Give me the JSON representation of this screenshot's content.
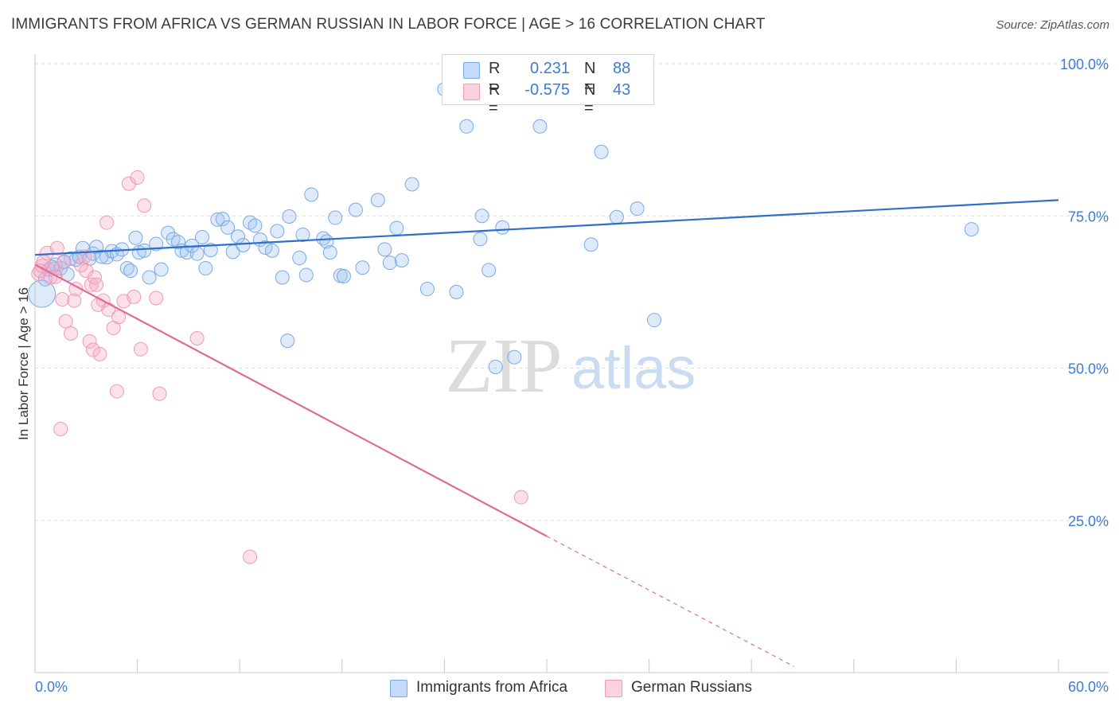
{
  "header": {
    "title": "IMMIGRANTS FROM AFRICA VS GERMAN RUSSIAN IN LABOR FORCE | AGE > 16 CORRELATION CHART",
    "source": "Source: ZipAtlas.com"
  },
  "watermark": {
    "zip": "ZIP",
    "atlas": "atlas"
  },
  "stats": [
    {
      "r_label": "R =",
      "r_value": "0.231",
      "n_label": "N =",
      "n_value": "88",
      "color": "#7aaae6"
    },
    {
      "r_label": "R =",
      "r_value": "-0.575",
      "n_label": "N =",
      "n_value": "43",
      "color": "#f09ab5"
    }
  ],
  "chart_data": {
    "type": "scatter",
    "title": "IMMIGRANTS FROM AFRICA VS GERMAN RUSSIAN IN LABOR FORCE | AGE > 16 CORRELATION CHART",
    "xlabel": "",
    "ylabel": "In Labor Force | Age > 16",
    "xlim": [
      0,
      60
    ],
    "ylim": [
      0,
      100
    ],
    "x_tick_labels": [
      "0.0%",
      "60.0%"
    ],
    "y_ticks": [
      25,
      50,
      75,
      100
    ],
    "y_tick_labels": [
      "25.0%",
      "50.0%",
      "75.0%",
      "100.0%"
    ],
    "grid": "horizontal dashed",
    "legend": "bottom-center",
    "series": [
      {
        "name": "Immigrants from Africa",
        "color": "#7aaae6",
        "line_color": "#2f6fcc",
        "trend": {
          "x": [
            0,
            60
          ],
          "y": [
            68.6,
            77.6
          ]
        },
        "points": [
          [
            0.4,
            62.2
          ],
          [
            0.8,
            66.2
          ],
          [
            1.2,
            67.0
          ],
          [
            1.5,
            66.4
          ],
          [
            1.9,
            65.4
          ],
          [
            2.1,
            68.0
          ],
          [
            2.4,
            67.8
          ],
          [
            2.6,
            68.3
          ],
          [
            2.8,
            69.7
          ],
          [
            3.2,
            68.0
          ],
          [
            3.4,
            68.8
          ],
          [
            3.6,
            69.9
          ],
          [
            4.2,
            68.2
          ],
          [
            4.5,
            69.2
          ],
          [
            4.8,
            68.7
          ],
          [
            5.1,
            69.5
          ],
          [
            5.4,
            66.4
          ],
          [
            5.6,
            66.0
          ],
          [
            5.9,
            71.4
          ],
          [
            6.1,
            69.0
          ],
          [
            6.4,
            69.3
          ],
          [
            6.7,
            64.9
          ],
          [
            7.1,
            70.4
          ],
          [
            7.4,
            66.2
          ],
          [
            7.8,
            72.2
          ],
          [
            8.1,
            71.2
          ],
          [
            8.4,
            70.7
          ],
          [
            8.6,
            69.3
          ],
          [
            8.9,
            69.0
          ],
          [
            9.2,
            70.1
          ],
          [
            9.5,
            68.8
          ],
          [
            9.8,
            71.5
          ],
          [
            10.0,
            66.4
          ],
          [
            10.3,
            69.4
          ],
          [
            10.7,
            74.4
          ],
          [
            11.0,
            74.5
          ],
          [
            11.3,
            73.1
          ],
          [
            11.6,
            69.1
          ],
          [
            11.9,
            71.6
          ],
          [
            12.2,
            70.2
          ],
          [
            12.6,
            73.9
          ],
          [
            12.9,
            73.4
          ],
          [
            13.2,
            71.1
          ],
          [
            13.5,
            69.8
          ],
          [
            13.9,
            69.3
          ],
          [
            14.2,
            72.5
          ],
          [
            14.5,
            64.9
          ],
          [
            14.8,
            54.5
          ],
          [
            14.9,
            74.9
          ],
          [
            15.5,
            68.1
          ],
          [
            15.7,
            71.9
          ],
          [
            15.9,
            65.3
          ],
          [
            16.2,
            78.5
          ],
          [
            16.9,
            71.3
          ],
          [
            17.1,
            70.8
          ],
          [
            17.3,
            69.0
          ],
          [
            17.6,
            74.7
          ],
          [
            17.9,
            65.2
          ],
          [
            18.1,
            65.1
          ],
          [
            18.8,
            76.0
          ],
          [
            19.2,
            66.5
          ],
          [
            20.1,
            77.6
          ],
          [
            20.5,
            69.5
          ],
          [
            20.8,
            67.3
          ],
          [
            21.2,
            73.0
          ],
          [
            21.5,
            67.7
          ],
          [
            22.1,
            80.2
          ],
          [
            23.0,
            63.0
          ],
          [
            24.0,
            95.8
          ],
          [
            24.7,
            62.5
          ],
          [
            25.3,
            89.7
          ],
          [
            26.1,
            71.2
          ],
          [
            26.2,
            75.0
          ],
          [
            26.6,
            66.1
          ],
          [
            27.0,
            50.2
          ],
          [
            27.4,
            73.1
          ],
          [
            28.1,
            51.8
          ],
          [
            29.6,
            89.7
          ],
          [
            32.6,
            70.3
          ],
          [
            33.2,
            85.5
          ],
          [
            34.1,
            74.8
          ],
          [
            35.3,
            76.2
          ],
          [
            36.3,
            57.9
          ],
          [
            54.9,
            72.8
          ],
          [
            0.6,
            64.6
          ],
          [
            1.0,
            66.6
          ],
          [
            1.7,
            67.5
          ],
          [
            3.9,
            68.3
          ]
        ]
      },
      {
        "name": "German Russians",
        "color": "#f09ab5",
        "line_color": "#e06a96",
        "trend": {
          "x": [
            0,
            30
          ],
          "y": [
            67.0,
            22.4
          ]
        },
        "trend_dashed": {
          "x": [
            30,
            44.5
          ],
          "y": [
            22.4,
            1.0
          ]
        },
        "points": [
          [
            0.2,
            65.5
          ],
          [
            0.4,
            66.8
          ],
          [
            0.7,
            68.9
          ],
          [
            0.9,
            64.9
          ],
          [
            1.1,
            66.3
          ],
          [
            1.3,
            69.7
          ],
          [
            1.6,
            61.3
          ],
          [
            1.7,
            67.4
          ],
          [
            1.8,
            57.7
          ],
          [
            2.1,
            55.7
          ],
          [
            2.3,
            61.1
          ],
          [
            2.7,
            66.9
          ],
          [
            2.9,
            68.3
          ],
          [
            3.0,
            66.0
          ],
          [
            3.2,
            54.4
          ],
          [
            3.3,
            63.7
          ],
          [
            3.4,
            53.0
          ],
          [
            3.5,
            64.9
          ],
          [
            3.6,
            63.7
          ],
          [
            3.8,
            52.3
          ],
          [
            4.0,
            61.1
          ],
          [
            4.2,
            73.9
          ],
          [
            4.3,
            59.6
          ],
          [
            4.6,
            56.6
          ],
          [
            4.8,
            46.2
          ],
          [
            4.9,
            58.4
          ],
          [
            5.2,
            61.0
          ],
          [
            5.5,
            80.3
          ],
          [
            5.8,
            61.7
          ],
          [
            6.0,
            81.3
          ],
          [
            6.2,
            53.1
          ],
          [
            6.4,
            76.7
          ],
          [
            7.1,
            61.5
          ],
          [
            7.3,
            45.8
          ],
          [
            9.5,
            54.9
          ],
          [
            1.5,
            40.0
          ],
          [
            12.6,
            19.0
          ],
          [
            28.5,
            28.8
          ],
          [
            0.5,
            67.5
          ],
          [
            1.2,
            65.0
          ],
          [
            2.4,
            63.0
          ],
          [
            3.7,
            60.4
          ],
          [
            0.3,
            66.0
          ]
        ]
      }
    ]
  },
  "bottom_legend": [
    {
      "label": "Immigrants from Africa",
      "color": "#7aaae6"
    },
    {
      "label": "German Russians",
      "color": "#f09ab5"
    }
  ]
}
